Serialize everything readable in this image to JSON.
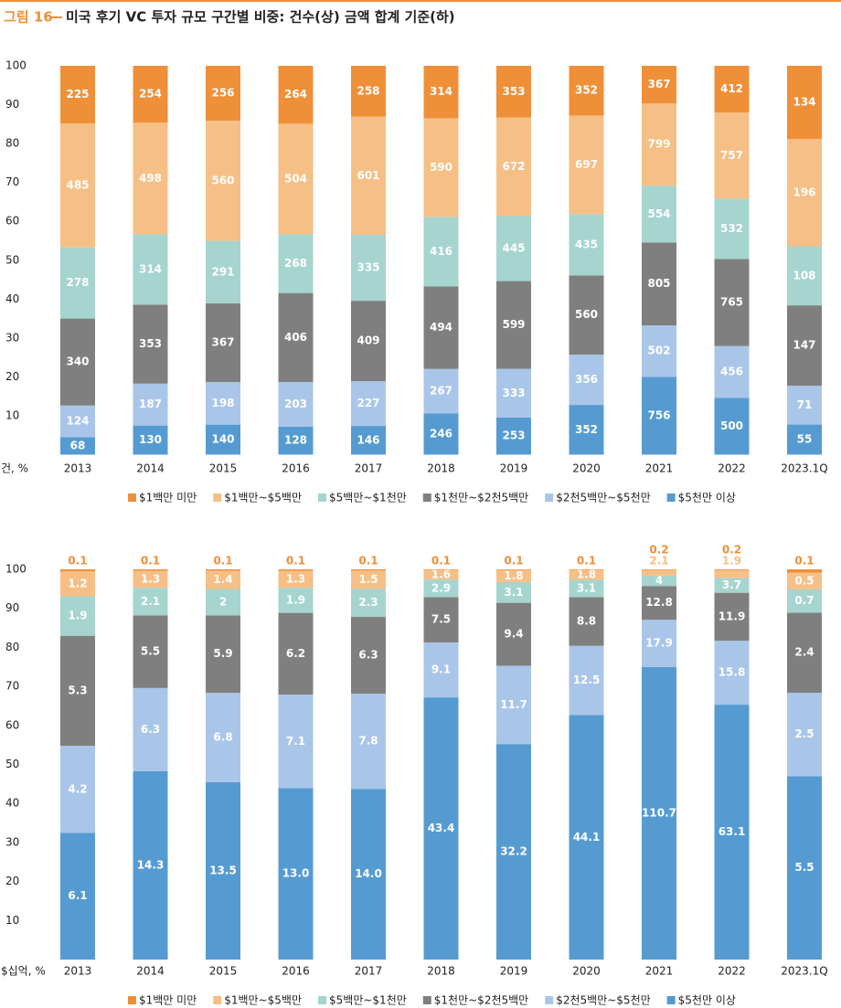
{
  "figure_label": "그림 16",
  "title": "미국 후기 VC 투자 규모 구간별 비중: 건수(상) 금액 합계 기준(하)",
  "chart_data": [
    {
      "type": "bar",
      "stacking": "percent",
      "y_label": "건, %",
      "categories": [
        "2013",
        "2014",
        "2015",
        "2016",
        "2017",
        "2018",
        "2019",
        "2020",
        "2021",
        "2022",
        "2023.1Q"
      ],
      "ylim": [
        0,
        100
      ],
      "yticks": [
        10,
        20,
        30,
        40,
        50,
        60,
        70,
        80,
        90,
        100
      ],
      "grid": false,
      "series": [
        {
          "name": "$1백만 미만",
          "color": "#ef8f38",
          "values": [
            225,
            254,
            256,
            264,
            258,
            314,
            353,
            352,
            367,
            412,
            134
          ]
        },
        {
          "name": "$1백만~$5백만",
          "color": "#f6bf86",
          "values": [
            485,
            498,
            560,
            504,
            601,
            590,
            672,
            697,
            799,
            757,
            196
          ]
        },
        {
          "name": "$5백만~$1천만",
          "color": "#a6d4cf",
          "values": [
            278,
            314,
            291,
            268,
            335,
            416,
            445,
            435,
            554,
            532,
            108
          ]
        },
        {
          "name": "$1천만~$2천5백만",
          "color": "#7f7f7f",
          "values": [
            340,
            353,
            367,
            406,
            409,
            494,
            599,
            560,
            805,
            765,
            147
          ]
        },
        {
          "name": "$2천5백만~$5천만",
          "color": "#a9c6e8",
          "values": [
            124,
            187,
            198,
            203,
            227,
            267,
            333,
            356,
            502,
            456,
            71
          ]
        },
        {
          "name": "$5천만 이상",
          "color": "#559bd1",
          "values": [
            68,
            130,
            140,
            128,
            146,
            246,
            253,
            352,
            756,
            500,
            55
          ]
        }
      ]
    },
    {
      "type": "bar",
      "stacking": "percent",
      "y_label": "$십억, %",
      "categories": [
        "2013",
        "2014",
        "2015",
        "2016",
        "2017",
        "2018",
        "2019",
        "2020",
        "2021",
        "2022",
        "2023.1Q"
      ],
      "ylim": [
        0,
        100
      ],
      "yticks": [
        10,
        20,
        30,
        40,
        50,
        60,
        70,
        80,
        90,
        100
      ],
      "grid": false,
      "series": [
        {
          "name": "$1백만 미만",
          "color": "#ef8f38",
          "values": [
            0.1,
            0.1,
            0.1,
            0.1,
            0.1,
            0.1,
            0.1,
            0.1,
            0.2,
            0.2,
            0.1
          ]
        },
        {
          "name": "$1백만~$5백만",
          "color": "#f6bf86",
          "values": [
            1.2,
            1.3,
            1.4,
            1.3,
            1.5,
            1.6,
            1.8,
            1.8,
            2.1,
            1.9,
            0.5
          ]
        },
        {
          "name": "$5백만~$1천만",
          "color": "#a6d4cf",
          "values": [
            1.9,
            2.1,
            2.0,
            1.9,
            2.3,
            2.9,
            3.1,
            3.1,
            4.0,
            3.7,
            0.7
          ]
        },
        {
          "name": "$1천만~$2천5백만",
          "color": "#7f7f7f",
          "values": [
            5.3,
            5.5,
            5.9,
            6.2,
            6.3,
            7.5,
            9.4,
            8.8,
            12.8,
            11.9,
            2.4
          ]
        },
        {
          "name": "$2천5백만~$5천만",
          "color": "#a9c6e8",
          "values": [
            4.2,
            6.3,
            6.8,
            7.1,
            7.8,
            9.1,
            11.7,
            12.5,
            17.9,
            15.8,
            2.5
          ]
        },
        {
          "name": "$5천만 이상",
          "color": "#559bd1",
          "values": [
            6.1,
            14.3,
            13.5,
            13.0,
            14.0,
            43.4,
            32.2,
            44.1,
            110.7,
            63.1,
            5.5
          ],
          "value_labels": [
            "6.1",
            "14.3",
            "13.5",
            "13.0",
            "14.0",
            "43.4",
            "32.2",
            "44.1",
            "110.7",
            "63.1",
            "5.5"
          ]
        }
      ]
    }
  ]
}
